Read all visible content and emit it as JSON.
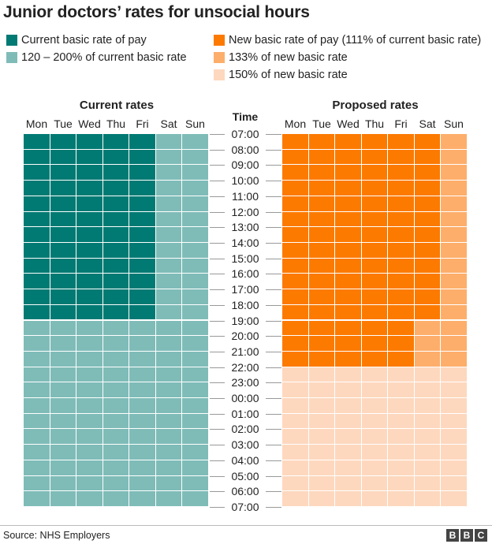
{
  "title": "Junior doctors’ rates for unsocial hours",
  "legend": [
    {
      "label": "Current basic rate of pay",
      "color": "#007a73"
    },
    {
      "label": "120 – 200% of current basic rate",
      "color": "#7fbcb8"
    },
    {
      "label": "New basic rate of pay (111% of current basic rate)",
      "color": "#fc7a00"
    },
    {
      "label": "133% of new basic rate",
      "color": "#fdae6b"
    },
    {
      "label": "150% of new basic rate",
      "color": "#fdd8be"
    }
  ],
  "time_header": "Time",
  "source": "Source: NHS Employers",
  "logo": "BBC",
  "chart_data": {
    "type": "heatmap",
    "time_label": "Time",
    "times": [
      "07:00",
      "08:00",
      "09:00",
      "10:00",
      "11:00",
      "12:00",
      "13:00",
      "14:00",
      "15:00",
      "16:00",
      "17:00",
      "18:00",
      "19:00",
      "20:00",
      "21:00",
      "22:00",
      "23:00",
      "00:00",
      "01:00",
      "02:00",
      "03:00",
      "04:00",
      "05:00",
      "06:00",
      "07:00"
    ],
    "panels": [
      {
        "title": "Current rates",
        "days": [
          "Mon",
          "Tue",
          "Wed",
          "Thu",
          "Fri",
          "Sat",
          "Sun"
        ],
        "blocks": [
          {
            "days": [
              "Mon",
              "Tue",
              "Wed",
              "Thu",
              "Fri"
            ],
            "from": "07:00",
            "to": "19:00",
            "rate": "Current basic rate of pay"
          },
          {
            "days": [
              "Mon",
              "Tue",
              "Wed",
              "Thu",
              "Fri"
            ],
            "from": "19:00",
            "to": "07:00",
            "rate": "120 – 200% of current basic rate"
          },
          {
            "days": [
              "Sat",
              "Sun"
            ],
            "from": "07:00",
            "to": "07:00",
            "rate": "120 – 200% of current basic rate"
          }
        ],
        "default_color": "#7fbcb8",
        "colors": {
          "Current basic rate of pay": "#007a73",
          "120 – 200% of current basic rate": "#7fbcb8"
        }
      },
      {
        "title": "Proposed rates",
        "days": [
          "Mon",
          "Tue",
          "Wed",
          "Thu",
          "Fri",
          "Sat",
          "Sun"
        ],
        "blocks": [
          {
            "days": [
              "Mon",
              "Tue",
              "Wed",
              "Thu",
              "Fri"
            ],
            "from": "07:00",
            "to": "22:00",
            "rate": "New basic rate of pay (111% of current basic rate)"
          },
          {
            "days": [
              "Sat"
            ],
            "from": "07:00",
            "to": "19:00",
            "rate": "New basic rate of pay (111% of current basic rate)"
          },
          {
            "days": [
              "Sat"
            ],
            "from": "19:00",
            "to": "22:00",
            "rate": "133% of new basic rate"
          },
          {
            "days": [
              "Sun"
            ],
            "from": "07:00",
            "to": "22:00",
            "rate": "133% of new basic rate"
          },
          {
            "days": [
              "Mon",
              "Tue",
              "Wed",
              "Thu",
              "Fri",
              "Sat",
              "Sun"
            ],
            "from": "22:00",
            "to": "07:00",
            "rate": "150% of new basic rate"
          }
        ],
        "colors": {
          "New basic rate of pay (111% of current basic rate)": "#fc7a00",
          "133% of new basic rate": "#fdae6b",
          "150% of new basic rate": "#fdd8be"
        }
      }
    ]
  }
}
